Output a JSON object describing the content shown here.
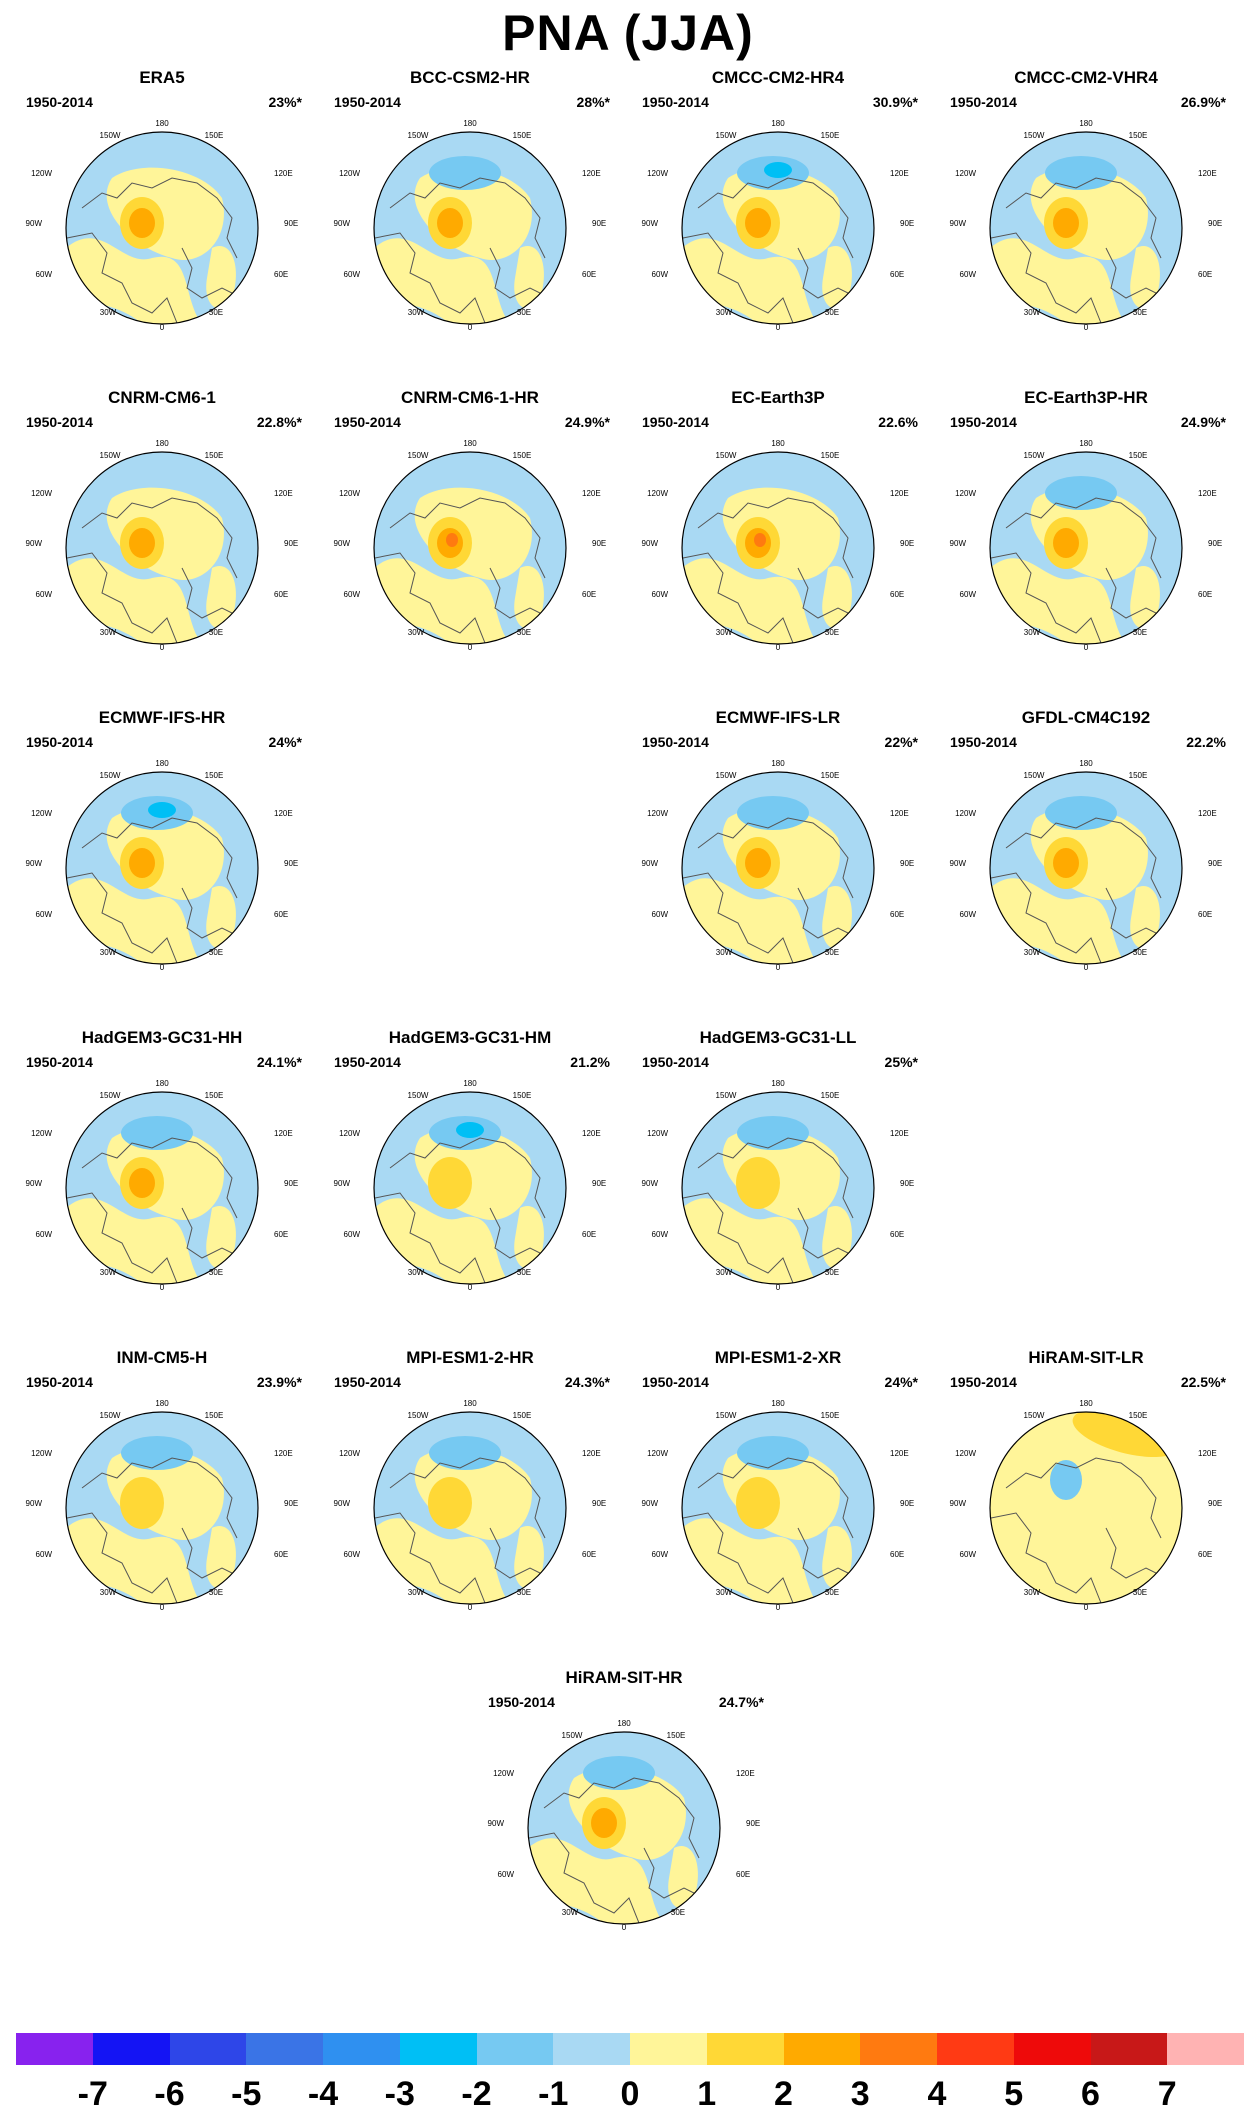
{
  "title": "PNA (JJA)",
  "panels": [
    {
      "name": "ERA5",
      "period": "1950-2014",
      "pct": "23%*",
      "pattern": {
        "arcticMax": 3,
        "pacificLow": 0,
        "atlanticRing": 1
      }
    },
    {
      "name": "BCC-CSM2-HR",
      "period": "1950-2014",
      "pct": "28%*",
      "pattern": {
        "arcticMax": 3,
        "pacificLow": -1,
        "atlanticRing": 1
      }
    },
    {
      "name": "CMCC-CM2-HR4",
      "period": "1950-2014",
      "pct": "30.9%*",
      "pattern": {
        "arcticMax": 3,
        "pacificLow": -2,
        "atlanticRing": 1
      }
    },
    {
      "name": "CMCC-CM2-VHR4",
      "period": "1950-2014",
      "pct": "26.9%*",
      "pattern": {
        "arcticMax": 3,
        "pacificLow": -1,
        "atlanticRing": 1
      }
    },
    {
      "name": "CNRM-CM6-1",
      "period": "1950-2014",
      "pct": "22.8%*",
      "pattern": {
        "arcticMax": 3,
        "pacificLow": 0,
        "atlanticRing": 1
      }
    },
    {
      "name": "CNRM-CM6-1-HR",
      "period": "1950-2014",
      "pct": "24.9%*",
      "pattern": {
        "arcticMax": 4,
        "pacificLow": 0,
        "atlanticRing": 1
      }
    },
    {
      "name": "EC-Earth3P",
      "period": "1950-2014",
      "pct": "22.6%",
      "pattern": {
        "arcticMax": 4,
        "pacificLow": 0,
        "atlanticRing": 1
      }
    },
    {
      "name": "EC-Earth3P-HR",
      "period": "1950-2014",
      "pct": "24.9%*",
      "pattern": {
        "arcticMax": 3,
        "pacificLow": -1,
        "atlanticRing": 1
      }
    },
    {
      "name": "ECMWF-IFS-HR",
      "period": "1950-2014",
      "pct": "24%*",
      "pattern": {
        "arcticMax": 3,
        "pacificLow": -2,
        "atlanticRing": 1
      }
    },
    {
      "name": "ECMWF-IFS-LR",
      "period": "1950-2014",
      "pct": "22%*",
      "pattern": {
        "arcticMax": 3,
        "pacificLow": -1,
        "atlanticRing": 1
      }
    },
    {
      "name": "GFDL-CM4C192",
      "period": "1950-2014",
      "pct": "22.2%",
      "pattern": {
        "arcticMax": 3,
        "pacificLow": -1,
        "atlanticRing": 1
      }
    },
    {
      "name": "HadGEM3-GC31-HH",
      "period": "1950-2014",
      "pct": "24.1%*",
      "pattern": {
        "arcticMax": 3,
        "pacificLow": -1,
        "atlanticRing": 1
      }
    },
    {
      "name": "HadGEM3-GC31-HM",
      "period": "1950-2014",
      "pct": "21.2%",
      "pattern": {
        "arcticMax": 1,
        "pacificLow": -2,
        "atlanticRing": 1
      }
    },
    {
      "name": "HadGEM3-GC31-LL",
      "period": "1950-2014",
      "pct": "25%*",
      "pattern": {
        "arcticMax": 2,
        "pacificLow": -1,
        "atlanticRing": 1
      }
    },
    {
      "name": "INM-CM5-H",
      "period": "1950-2014",
      "pct": "23.9%*",
      "pattern": {
        "arcticMax": 2,
        "pacificLow": -1,
        "atlanticRing": 1
      }
    },
    {
      "name": "MPI-ESM1-2-HR",
      "period": "1950-2014",
      "pct": "24.3%*",
      "pattern": {
        "arcticMax": 2,
        "pacificLow": -1,
        "atlanticRing": 1
      }
    },
    {
      "name": "MPI-ESM1-2-XR",
      "period": "1950-2014",
      "pct": "24%*",
      "pattern": {
        "arcticMax": 2,
        "pacificLow": -1,
        "atlanticRing": 1
      }
    },
    {
      "name": "HiRAM-SIT-LR",
      "period": "1950-2014",
      "pct": "22.5%*",
      "pattern": {
        "arcticMax": -1,
        "pacificLow": 2,
        "atlanticRing": 0
      }
    },
    {
      "name": "HiRAM-SIT-HR",
      "period": "1950-2014",
      "pct": "24.7%*",
      "pattern": {
        "arcticMax": 3,
        "pacificLow": -1,
        "atlanticRing": 1
      }
    }
  ],
  "map_labels": {
    "top": "180",
    "topLeft": "150W",
    "topRight": "150E",
    "left1": "120W",
    "right1": "120E",
    "left2": "90W",
    "right2": "90E",
    "left3": "60W",
    "right3": "60E",
    "bottomLeft": "30W",
    "bottomRight": "30E",
    "bottom": "0"
  },
  "colorbar": {
    "ticks": [
      "-7",
      "-6",
      "-5",
      "-4",
      "-3",
      "-2",
      "-1",
      "0",
      "1",
      "2",
      "3",
      "4",
      "5",
      "6",
      "7"
    ],
    "colors": [
      "#8822ee",
      "#1414f4",
      "#2e46e8",
      "#3a74e6",
      "#2f90f0",
      "#00bff5",
      "#76c9f2",
      "#a9d9f3",
      "#fff599",
      "#ffd836",
      "#ffaa00",
      "#ff7a10",
      "#ff3a14",
      "#ee0a0a",
      "#c81818",
      "#ffb3b3"
    ]
  }
}
